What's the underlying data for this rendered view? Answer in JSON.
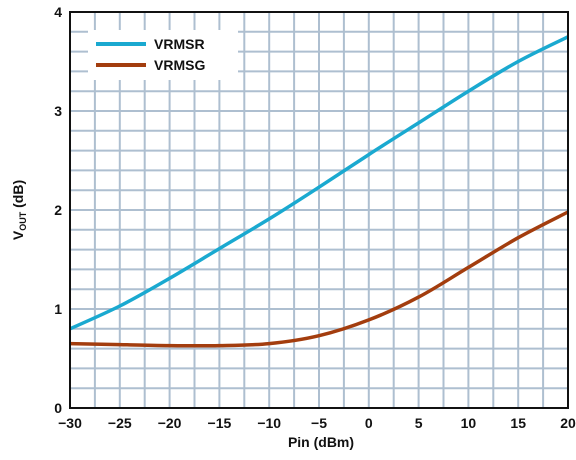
{
  "chart_data": {
    "type": "line",
    "title": "",
    "xlabel": "Pin (dBm)",
    "ylabel_main": "V",
    "ylabel_sub": "OUT",
    "ylabel_unit": " (dB)",
    "xlim": [
      -30,
      20
    ],
    "ylim": [
      0,
      4
    ],
    "xticks": [
      -30,
      -25,
      -20,
      -15,
      -10,
      -5,
      0,
      5,
      10,
      15,
      20
    ],
    "xtick_labels": [
      "−30",
      "−25",
      "−20",
      "−15",
      "−10",
      "−5",
      "0",
      "5",
      "10",
      "15",
      "20"
    ],
    "yticks": [
      0,
      1,
      2,
      3,
      4
    ],
    "ytick_labels": [
      "0",
      "1",
      "2",
      "3",
      "4"
    ],
    "grid": true,
    "legend_position": "top-left",
    "series": [
      {
        "name": "VRMSR",
        "color": "#1aa9d0",
        "x": [
          -30,
          -25,
          -20,
          -15,
          -10,
          -5,
          0,
          5,
          10,
          15,
          20
        ],
        "y": [
          0.8,
          1.03,
          1.31,
          1.61,
          1.91,
          2.23,
          2.56,
          2.88,
          3.2,
          3.5,
          3.75
        ]
      },
      {
        "name": "VRMSG",
        "color": "#a33d0e",
        "x": [
          -30,
          -25,
          -20,
          -15,
          -10,
          -5,
          0,
          5,
          10,
          15,
          20
        ],
        "y": [
          0.65,
          0.64,
          0.63,
          0.63,
          0.65,
          0.73,
          0.89,
          1.12,
          1.42,
          1.72,
          1.98
        ]
      }
    ]
  }
}
